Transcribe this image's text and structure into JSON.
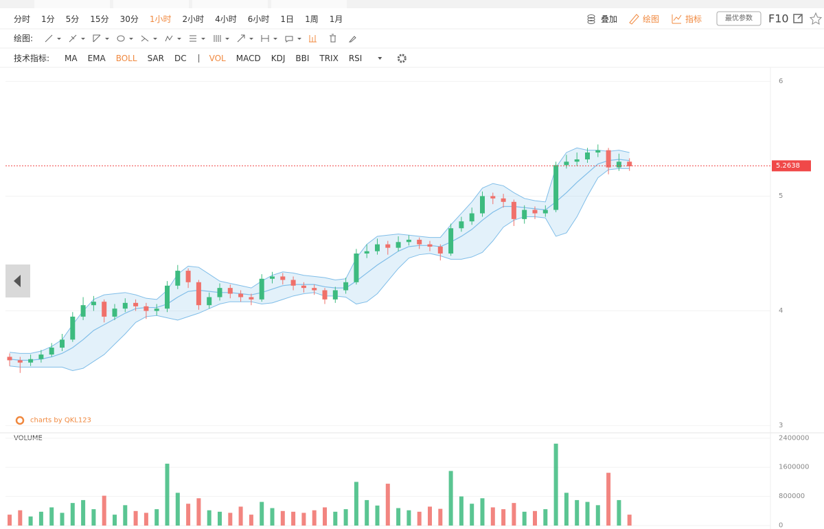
{
  "toolbar": {
    "periods": [
      "分时",
      "1分",
      "5分",
      "15分",
      "30分",
      "1小时",
      "2小时",
      "4小时",
      "6小时",
      "1日",
      "1周",
      "1月"
    ],
    "active_period": 5,
    "overlay": "叠加",
    "draw": "绘图",
    "indicators": "指标",
    "optimal": "最优参数",
    "f10": "F10",
    "drawing_label": "绘图:",
    "indicator_label": "技术指标:",
    "main_indicators": [
      "MA",
      "EMA",
      "BOLL",
      "SAR",
      "DC"
    ],
    "active_main": [
      2
    ],
    "sub_indicators": [
      "VOL",
      "MACD",
      "KDJ",
      "BBI",
      "TRIX",
      "RSI"
    ],
    "active_sub": [
      0
    ]
  },
  "chart_data": {
    "type": "candlestick",
    "up_color": "#3dbb7f",
    "down_color": "#f0706a",
    "band_color": "#7fbde8",
    "ylim": [
      2.95,
      6.11
    ],
    "yticks": [
      3,
      4,
      5,
      6
    ],
    "grid": true,
    "open": [
      3.6,
      3.57,
      3.55,
      3.58,
      3.62,
      3.68,
      3.75,
      3.95,
      4.05,
      4.08,
      3.95,
      4.02,
      4.07,
      4.04,
      4.0,
      4.02,
      4.22,
      4.35,
      4.25,
      4.05,
      4.12,
      4.2,
      4.15,
      4.12,
      4.1,
      4.28,
      4.3,
      4.27,
      4.22,
      4.2,
      4.18,
      4.1,
      4.18,
      4.25,
      4.5,
      4.52,
      4.58,
      4.55,
      4.6,
      4.62,
      4.58,
      4.56,
      4.5,
      4.72,
      4.78,
      4.85,
      5.0,
      4.98,
      4.95,
      4.8,
      4.88,
      4.85,
      4.88,
      5.27,
      5.3,
      5.32,
      5.38,
      5.4,
      5.25,
      5.3
    ],
    "high": [
      3.63,
      3.6,
      3.62,
      3.66,
      3.72,
      3.8,
      3.99,
      4.12,
      4.13,
      4.1,
      4.06,
      4.11,
      4.1,
      4.07,
      4.06,
      4.26,
      4.4,
      4.37,
      4.27,
      4.16,
      4.24,
      4.23,
      4.18,
      4.15,
      4.32,
      4.34,
      4.33,
      4.3,
      4.25,
      4.23,
      4.2,
      4.21,
      4.29,
      4.54,
      4.58,
      4.63,
      4.61,
      4.65,
      4.66,
      4.64,
      4.61,
      4.58,
      4.76,
      4.82,
      4.9,
      5.04,
      5.03,
      5.02,
      4.97,
      4.92,
      4.91,
      4.92,
      5.3,
      5.36,
      5.38,
      5.42,
      5.45,
      5.42,
      5.37,
      5.33
    ],
    "low": [
      3.52,
      3.46,
      3.52,
      3.55,
      3.6,
      3.65,
      3.73,
      3.92,
      4.0,
      3.9,
      3.92,
      3.99,
      4.0,
      3.93,
      3.96,
      3.99,
      4.19,
      4.2,
      4.01,
      4.02,
      4.09,
      4.11,
      4.08,
      4.05,
      4.08,
      4.24,
      4.23,
      4.18,
      4.16,
      4.14,
      4.06,
      4.07,
      4.15,
      4.23,
      4.46,
      4.49,
      4.49,
      4.52,
      4.57,
      4.54,
      4.52,
      4.44,
      4.48,
      4.69,
      4.75,
      4.82,
      4.93,
      4.9,
      4.74,
      4.76,
      4.8,
      4.82,
      4.86,
      5.24,
      5.26,
      5.29,
      5.34,
      5.19,
      5.22,
      5.22
    ],
    "close": [
      3.57,
      3.55,
      3.58,
      3.62,
      3.68,
      3.75,
      3.95,
      4.05,
      4.08,
      3.95,
      4.02,
      4.07,
      4.04,
      4.0,
      4.02,
      4.22,
      4.35,
      4.25,
      4.05,
      4.12,
      4.2,
      4.15,
      4.12,
      4.1,
      4.28,
      4.3,
      4.27,
      4.22,
      4.2,
      4.18,
      4.1,
      4.18,
      4.25,
      4.5,
      4.52,
      4.58,
      4.55,
      4.6,
      4.62,
      4.58,
      4.56,
      4.5,
      4.72,
      4.78,
      4.85,
      5.0,
      4.98,
      4.95,
      4.8,
      4.88,
      4.85,
      4.88,
      5.27,
      5.3,
      5.32,
      5.38,
      5.4,
      5.25,
      5.3,
      5.26
    ],
    "boll": {
      "upper": [
        3.64,
        3.63,
        3.63,
        3.65,
        3.69,
        3.75,
        3.88,
        4.0,
        4.1,
        4.14,
        4.15,
        4.16,
        4.14,
        4.11,
        4.1,
        4.18,
        4.32,
        4.39,
        4.38,
        4.32,
        4.26,
        4.24,
        4.22,
        4.2,
        4.26,
        4.31,
        4.34,
        4.33,
        4.31,
        4.3,
        4.29,
        4.27,
        4.28,
        4.46,
        4.58,
        4.65,
        4.66,
        4.67,
        4.66,
        4.65,
        4.64,
        4.64,
        4.75,
        4.85,
        4.95,
        5.07,
        5.11,
        5.09,
        5.03,
        4.98,
        4.96,
        4.95,
        5.25,
        5.38,
        5.42,
        5.4,
        5.4,
        5.39,
        5.4,
        5.38
      ],
      "mid": [
        3.58,
        3.57,
        3.57,
        3.58,
        3.6,
        3.63,
        3.68,
        3.75,
        3.83,
        3.88,
        3.93,
        3.98,
        4.02,
        4.03,
        4.03,
        4.06,
        4.12,
        4.17,
        4.18,
        4.17,
        4.16,
        4.16,
        4.15,
        4.14,
        4.16,
        4.19,
        4.22,
        4.23,
        4.23,
        4.23,
        4.21,
        4.2,
        4.2,
        4.26,
        4.33,
        4.4,
        4.46,
        4.52,
        4.56,
        4.57,
        4.57,
        4.56,
        4.6,
        4.65,
        4.71,
        4.79,
        4.86,
        4.91,
        4.91,
        4.9,
        4.89,
        4.88,
        4.95,
        5.03,
        5.12,
        5.2,
        5.28,
        5.31,
        5.32,
        5.31
      ],
      "lower": [
        3.52,
        3.51,
        3.51,
        3.51,
        3.51,
        3.51,
        3.48,
        3.5,
        3.56,
        3.62,
        3.71,
        3.8,
        3.9,
        3.95,
        3.96,
        3.94,
        3.92,
        3.95,
        3.98,
        4.02,
        4.06,
        4.08,
        4.08,
        4.08,
        4.06,
        4.07,
        4.1,
        4.13,
        4.15,
        4.16,
        4.13,
        4.13,
        4.12,
        4.06,
        4.08,
        4.15,
        4.26,
        4.37,
        4.46,
        4.49,
        4.5,
        4.48,
        4.45,
        4.45,
        4.47,
        4.51,
        4.61,
        4.73,
        4.79,
        4.82,
        4.82,
        4.81,
        4.65,
        4.68,
        4.82,
        5.0,
        5.16,
        5.23,
        5.24,
        5.24
      ]
    },
    "last_price": 5.2638,
    "last_price_color": "#f04848",
    "watermark": "charts by QKL123",
    "volume_label": "VOLUME",
    "volume": [
      300000,
      420000,
      250000,
      380000,
      500000,
      350000,
      620000,
      700000,
      450000,
      820000,
      300000,
      560000,
      400000,
      350000,
      450000,
      1700000,
      900000,
      600000,
      750000,
      420000,
      380000,
      350000,
      520000,
      300000,
      650000,
      480000,
      400000,
      380000,
      350000,
      420000,
      500000,
      380000,
      450000,
      1200000,
      700000,
      550000,
      1150000,
      480000,
      420000,
      380000,
      520000,
      460000,
      1500000,
      800000,
      600000,
      750000,
      500000,
      450000,
      620000,
      380000,
      400000,
      450000,
      2250000,
      900000,
      700000,
      650000,
      560000,
      1450000,
      700000,
      300000
    ],
    "volume_ylim": [
      0,
      2510000
    ],
    "volume_yticks": [
      0,
      800000,
      1600000,
      2400000
    ]
  }
}
